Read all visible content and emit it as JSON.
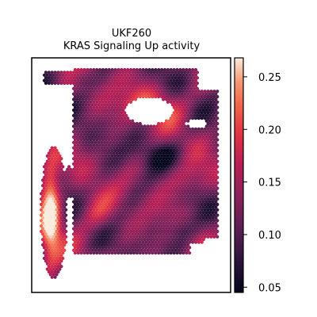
{
  "chart_data": {
    "type": "heatmap",
    "title_lines": [
      "UKF260",
      "KRAS Signaling Up activity"
    ],
    "xlabel": "",
    "ylabel": "",
    "grid": false,
    "colorbar": {
      "colormap": "rocket",
      "range": [
        0.045,
        0.268
      ],
      "ticks": [
        0.05,
        0.1,
        0.15,
        0.2,
        0.25
      ],
      "tick_labels": [
        "0.05",
        "0.10",
        "0.15",
        "0.20",
        "0.25"
      ],
      "placement": "right"
    },
    "spots": {
      "description": "hexagonal spatial transcriptomics spots colored by activity score",
      "value_range": [
        0.045,
        0.268
      ]
    }
  }
}
